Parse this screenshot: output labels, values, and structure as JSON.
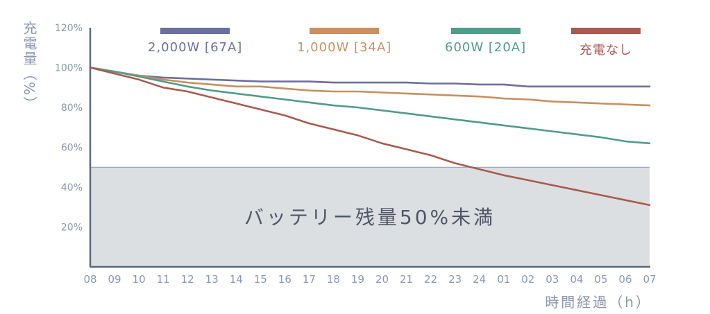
{
  "chart_data": {
    "type": "line",
    "ylabel": "充電量（%）",
    "xlabel": "時間経過（h）",
    "ylim": [
      0,
      120
    ],
    "yticks": [
      {
        "value": 20,
        "label": "20%"
      },
      {
        "value": 40,
        "label": "40%"
      },
      {
        "value": 60,
        "label": "60%"
      },
      {
        "value": 80,
        "label": "80%"
      },
      {
        "value": 100,
        "label": "100%"
      },
      {
        "value": 120,
        "label": "120%"
      }
    ],
    "x_tick_labels": [
      "08",
      "09",
      "10",
      "11",
      "12",
      "13",
      "14",
      "15",
      "16",
      "17",
      "18",
      "19",
      "20",
      "21",
      "22",
      "23",
      "24",
      "01",
      "02",
      "03",
      "04",
      "05",
      "06",
      "07"
    ],
    "threshold": {
      "value": 50,
      "label": "バッテリー残量50%未満"
    },
    "series": [
      {
        "name": "2,000W [67A]",
        "color": "#6b6ea0",
        "values": [
          100,
          98,
          96,
          95,
          94.5,
          94,
          93.5,
          93,
          93,
          93,
          92.5,
          92.5,
          92.5,
          92.5,
          92,
          92,
          91.5,
          91.5,
          90.5,
          90.5,
          90.5,
          90.5,
          90.5,
          90.5
        ]
      },
      {
        "name": "1,000W [34A]",
        "color": "#c98f5f",
        "values": [
          100,
          98,
          96,
          94,
          92.5,
          91.5,
          90.5,
          90.5,
          89.5,
          88.5,
          88,
          88,
          87.5,
          87,
          86.5,
          86,
          85.5,
          84.5,
          84,
          83,
          82.5,
          82,
          81.5,
          81
        ]
      },
      {
        "name": "600W [20A]",
        "color": "#4f9c8a",
        "values": [
          100,
          98,
          95.5,
          93,
          90.5,
          88.5,
          87,
          85.5,
          84,
          82.5,
          81,
          80,
          78.5,
          77,
          75.5,
          74,
          72.5,
          71,
          69.5,
          68,
          66.5,
          65,
          63,
          62
        ]
      },
      {
        "name": "充電なし",
        "color": "#a85a4e",
        "values": [
          100,
          97,
          94,
          90,
          88,
          85,
          82,
          79,
          76,
          72,
          69,
          66,
          62,
          59,
          56,
          52,
          49,
          46,
          43.5,
          41,
          38.5,
          36,
          33.5,
          31
        ]
      }
    ]
  }
}
